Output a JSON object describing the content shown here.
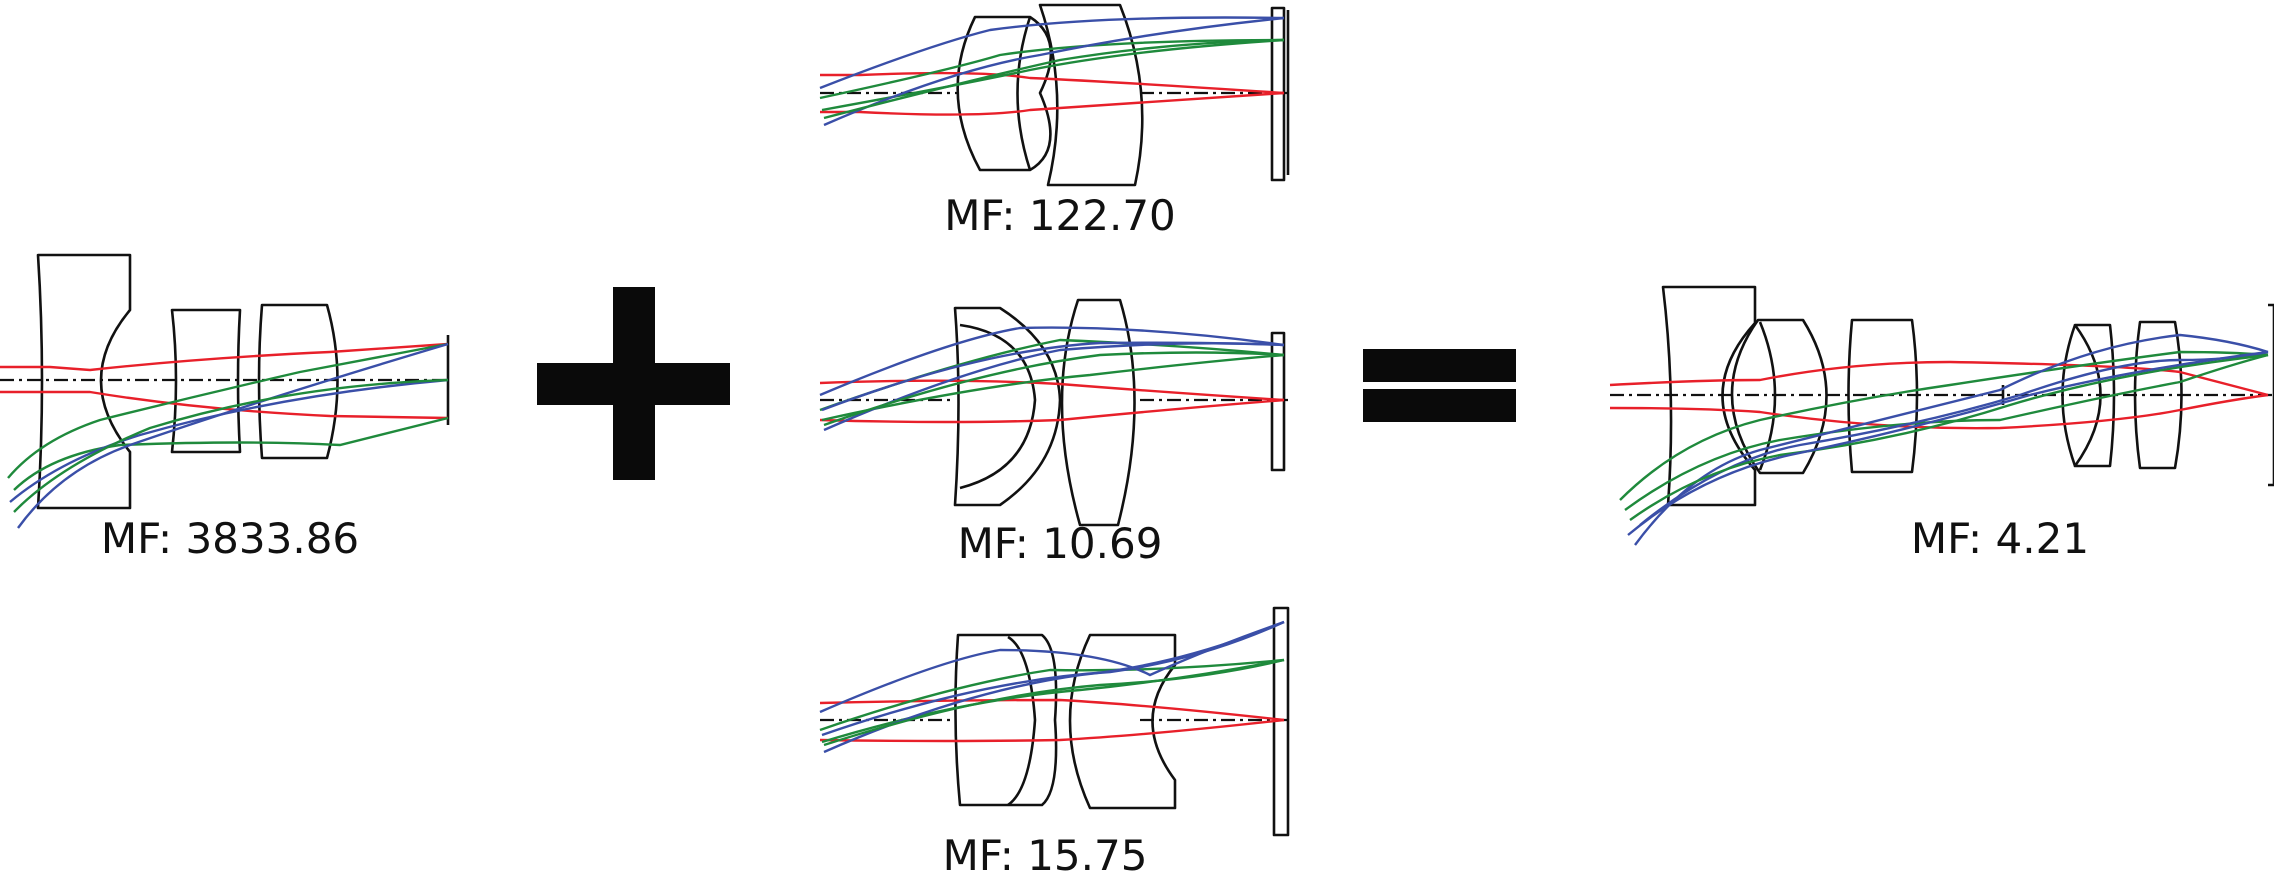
{
  "colors": {
    "outline": "#111111",
    "ray_red": "#e8202a",
    "ray_green": "#1f8a3c",
    "ray_blue": "#3a4fa8",
    "operator": "#0a0a0a"
  },
  "operators": {
    "plus": "+",
    "equals": "="
  },
  "designs": {
    "base": {
      "label": "MF: 3833.86"
    },
    "candidate_top": {
      "label": "MF: 122.70"
    },
    "candidate_middle": {
      "label": "MF: 10.69"
    },
    "candidate_bottom": {
      "label": "MF: 15.75"
    },
    "result": {
      "label": "MF: 4.21"
    }
  }
}
